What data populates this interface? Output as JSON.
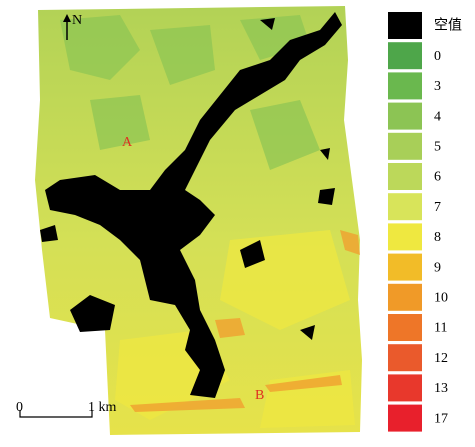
{
  "map": {
    "north": "N",
    "labels": [
      "A",
      "B"
    ],
    "scale": {
      "start": "0",
      "end": "1 km"
    }
  },
  "legend": {
    "items": [
      {
        "label": "空值",
        "color": "#000000"
      },
      {
        "label": "0",
        "color": "#4ea64a"
      },
      {
        "label": "3",
        "color": "#6ab84e"
      },
      {
        "label": "4",
        "color": "#8cc454"
      },
      {
        "label": "5",
        "color": "#a8cf58"
      },
      {
        "label": "6",
        "color": "#bcd85a"
      },
      {
        "label": "7",
        "color": "#d8e45a"
      },
      {
        "label": "8",
        "color": "#efe840"
      },
      {
        "label": "9",
        "color": "#f2bc28"
      },
      {
        "label": "10",
        "color": "#f09a28"
      },
      {
        "label": "11",
        "color": "#ee7628"
      },
      {
        "label": "12",
        "color": "#ea5a2c"
      },
      {
        "label": "13",
        "color": "#e8382c"
      },
      {
        "label": "17",
        "color": "#e8202c"
      }
    ]
  }
}
